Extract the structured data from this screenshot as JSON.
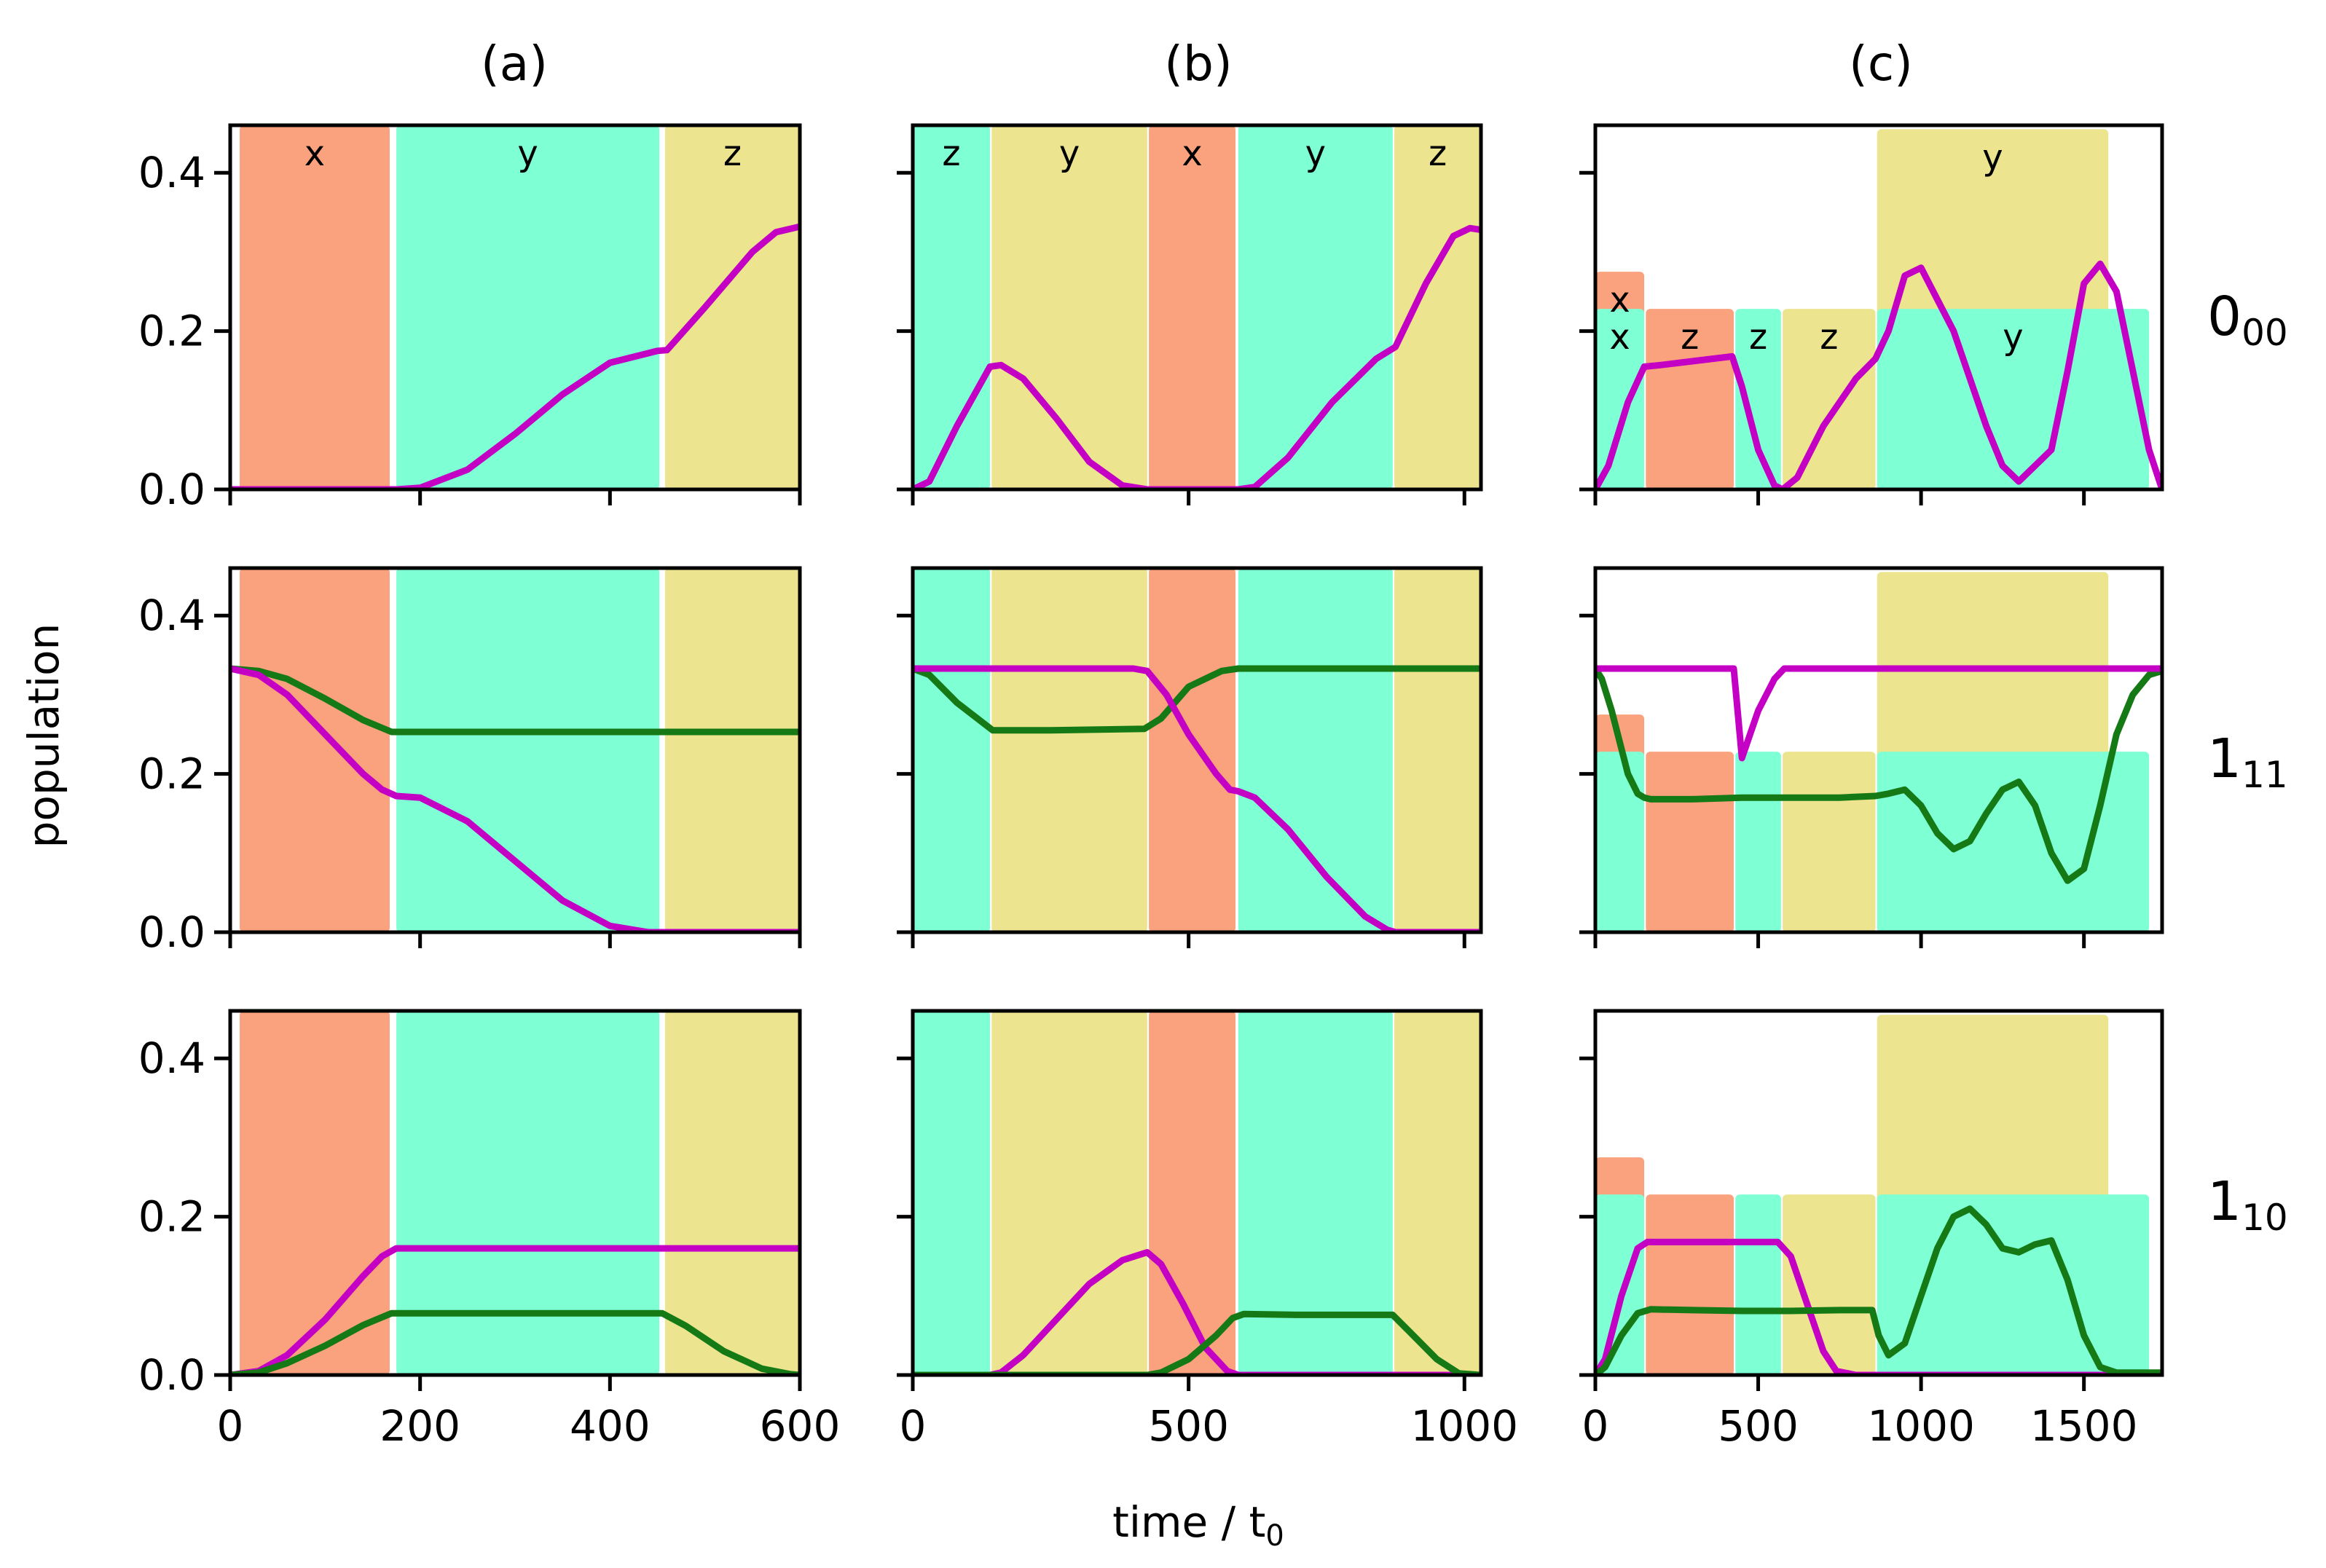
{
  "figure": {
    "xlabel": "time / t",
    "xlabel_sub": "0",
    "ylabel": "population"
  },
  "colors": {
    "x": "#FAA27D",
    "y": "#7FFFD4",
    "z": "#ECE48E",
    "magenta": "#C300C3",
    "green": "#157A15"
  },
  "columns": [
    {
      "title": "(a)",
      "xlim": [
        0,
        600
      ],
      "xticks": [
        0,
        200,
        400,
        600
      ],
      "pulses": [
        {
          "type": "x",
          "start": 10,
          "end": 168,
          "height": 0.46,
          "label": "x"
        },
        {
          "type": "y",
          "start": 175,
          "end": 452,
          "height": 0.46,
          "label": "y"
        },
        {
          "type": "z",
          "start": 458,
          "end": 600,
          "height": 0.46,
          "label": "z"
        }
      ]
    },
    {
      "title": "(b)",
      "xlim": [
        0,
        1030
      ],
      "xticks": [
        0,
        500,
        1000
      ],
      "pulses": [
        {
          "type": "y",
          "start": 0,
          "end": 140,
          "height": 0.46,
          "label": "z"
        },
        {
          "type": "z",
          "start": 143,
          "end": 425,
          "height": 0.46,
          "label": "y"
        },
        {
          "type": "x",
          "start": 428,
          "end": 585,
          "height": 0.46,
          "label": "x"
        },
        {
          "type": "y",
          "start": 590,
          "end": 870,
          "height": 0.46,
          "label": "y"
        },
        {
          "type": "z",
          "start": 873,
          "end": 1030,
          "height": 0.46,
          "label": "z"
        }
      ]
    },
    {
      "title": "(c)",
      "xlim": [
        0,
        1740
      ],
      "xticks": [
        0,
        500,
        1000,
        1500
      ],
      "pulses": [
        {
          "type": "x",
          "start": 0,
          "end": 150,
          "height": 0.275,
          "label": "x"
        },
        {
          "type": "y",
          "start": 0,
          "end": 150,
          "height": 0.228,
          "label": "x"
        },
        {
          "type": "x",
          "start": 155,
          "end": 425,
          "height": 0.228,
          "label": "z"
        },
        {
          "type": "y",
          "start": 430,
          "end": 570,
          "height": 0.228,
          "label": "z"
        },
        {
          "type": "z",
          "start": 575,
          "end": 860,
          "height": 0.228,
          "label": "z"
        },
        {
          "type": "z",
          "start": 865,
          "end": 1575,
          "height": 0.455,
          "label": "y"
        },
        {
          "type": "y",
          "start": 865,
          "end": 1700,
          "height": 0.228,
          "label": "y"
        }
      ]
    }
  ],
  "rows": [
    {
      "label_main": "0",
      "label_sub": "00"
    },
    {
      "label_main": "1",
      "label_sub": "11"
    },
    {
      "label_main": "1",
      "label_sub": "10"
    }
  ],
  "yaxis": {
    "ylim": [
      0,
      0.46
    ],
    "yticks": [
      "0.0",
      "0.2",
      "0.4"
    ],
    "ytick_values": [
      0,
      0.2,
      0.4
    ]
  },
  "chart_data": [
    {
      "panel": "(a) 0_00",
      "type": "line",
      "xlim": [
        0,
        600
      ],
      "ylim": [
        0,
        0.46
      ],
      "series": [
        {
          "color": "magenta",
          "x": [
            0,
            100,
            175,
            200,
            250,
            300,
            350,
            400,
            450,
            460,
            500,
            550,
            575,
            600
          ],
          "y": [
            0,
            0,
            0,
            0.002,
            0.025,
            0.07,
            0.12,
            0.16,
            0.175,
            0.176,
            0.23,
            0.3,
            0.325,
            0.332
          ]
        }
      ]
    },
    {
      "panel": "(b) 0_00",
      "type": "line",
      "xlim": [
        0,
        1030
      ],
      "ylim": [
        0,
        0.46
      ],
      "series": [
        {
          "color": "magenta",
          "x": [
            0,
            30,
            80,
            140,
            160,
            200,
            260,
            320,
            380,
            425,
            500,
            590,
            620,
            680,
            760,
            840,
            875,
            930,
            980,
            1010,
            1030
          ],
          "y": [
            0,
            0.01,
            0.08,
            0.155,
            0.157,
            0.14,
            0.09,
            0.035,
            0.005,
            0,
            0,
            0,
            0.003,
            0.04,
            0.11,
            0.165,
            0.18,
            0.26,
            0.32,
            0.33,
            0.328
          ]
        }
      ]
    },
    {
      "panel": "(c) 0_00",
      "type": "line",
      "xlim": [
        0,
        1740
      ],
      "ylim": [
        0,
        0.46
      ],
      "series": [
        {
          "color": "magenta",
          "x": [
            0,
            40,
            100,
            150,
            200,
            300,
            420,
            450,
            500,
            550,
            575,
            620,
            700,
            800,
            860,
            900,
            950,
            1000,
            1100,
            1200,
            1250,
            1300,
            1400,
            1450,
            1500,
            1550,
            1600,
            1650,
            1700,
            1740
          ],
          "y": [
            0,
            0.03,
            0.11,
            0.155,
            0.157,
            0.162,
            0.168,
            0.13,
            0.05,
            0.005,
            0,
            0.015,
            0.08,
            0.14,
            0.165,
            0.2,
            0.27,
            0.28,
            0.2,
            0.08,
            0.03,
            0.01,
            0.05,
            0.15,
            0.26,
            0.285,
            0.25,
            0.15,
            0.05,
            0
          ]
        }
      ]
    },
    {
      "panel": "(a) 1_11",
      "type": "line",
      "xlim": [
        0,
        600
      ],
      "ylim": [
        0,
        0.46
      ],
      "series": [
        {
          "color": "green",
          "x": [
            0,
            30,
            60,
            100,
            140,
            170,
            300,
            450,
            600
          ],
          "y": [
            0.333,
            0.33,
            0.32,
            0.295,
            0.268,
            0.253,
            0.253,
            0.253,
            0.253
          ]
        },
        {
          "color": "magenta",
          "x": [
            0,
            30,
            60,
            100,
            140,
            160,
            175,
            200,
            250,
            300,
            350,
            400,
            440,
            460,
            600
          ],
          "y": [
            0.333,
            0.325,
            0.3,
            0.25,
            0.2,
            0.18,
            0.172,
            0.17,
            0.14,
            0.09,
            0.04,
            0.008,
            0,
            0,
            0
          ]
        }
      ]
    },
    {
      "panel": "(b) 1_11",
      "type": "line",
      "xlim": [
        0,
        1030
      ],
      "ylim": [
        0,
        0.46
      ],
      "series": [
        {
          "color": "green",
          "x": [
            0,
            30,
            80,
            145,
            250,
            420,
            450,
            500,
            560,
            590,
            700,
            900,
            1030
          ],
          "y": [
            0.333,
            0.325,
            0.29,
            0.255,
            0.255,
            0.257,
            0.27,
            0.31,
            0.33,
            0.333,
            0.333,
            0.333,
            0.333
          ]
        },
        {
          "color": "magenta",
          "x": [
            0,
            200,
            400,
            425,
            460,
            500,
            550,
            575,
            590,
            620,
            680,
            750,
            820,
            860,
            875,
            1030
          ],
          "y": [
            0.333,
            0.333,
            0.333,
            0.33,
            0.3,
            0.25,
            0.2,
            0.18,
            0.178,
            0.17,
            0.13,
            0.07,
            0.02,
            0.003,
            0,
            0
          ]
        }
      ]
    },
    {
      "panel": "(c) 1_11",
      "type": "line",
      "xlim": [
        0,
        1740
      ],
      "ylim": [
        0,
        0.46
      ],
      "series": [
        {
          "color": "green",
          "x": [
            0,
            20,
            50,
            100,
            130,
            150,
            170,
            300,
            450,
            600,
            750,
            860,
            900,
            950,
            1000,
            1050,
            1100,
            1150,
            1200,
            1250,
            1300,
            1350,
            1400,
            1450,
            1500,
            1550,
            1600,
            1650,
            1700,
            1740
          ],
          "y": [
            0.333,
            0.32,
            0.28,
            0.2,
            0.175,
            0.17,
            0.168,
            0.168,
            0.17,
            0.17,
            0.17,
            0.172,
            0.175,
            0.18,
            0.16,
            0.125,
            0.105,
            0.115,
            0.15,
            0.18,
            0.19,
            0.16,
            0.1,
            0.065,
            0.08,
            0.16,
            0.25,
            0.3,
            0.325,
            0.33
          ]
        },
        {
          "color": "magenta",
          "x": [
            0,
            150,
            300,
            425,
            450,
            500,
            550,
            580,
            700,
            1000,
            1740
          ],
          "y": [
            0.333,
            0.333,
            0.333,
            0.333,
            0.22,
            0.28,
            0.32,
            0.333,
            0.333,
            0.333,
            0.333
          ]
        }
      ]
    },
    {
      "panel": "(a) 1_10",
      "type": "line",
      "xlim": [
        0,
        600
      ],
      "ylim": [
        0,
        0.46
      ],
      "series": [
        {
          "color": "magenta",
          "x": [
            0,
            30,
            60,
            100,
            140,
            160,
            175,
            300,
            450,
            600
          ],
          "y": [
            0,
            0.005,
            0.025,
            0.07,
            0.125,
            0.15,
            0.16,
            0.16,
            0.16,
            0.16
          ]
        },
        {
          "color": "green",
          "x": [
            0,
            30,
            60,
            100,
            140,
            170,
            300,
            455,
            480,
            520,
            560,
            590,
            600
          ],
          "y": [
            0,
            0.003,
            0.015,
            0.037,
            0.063,
            0.078,
            0.078,
            0.078,
            0.062,
            0.03,
            0.008,
            0.001,
            0
          ]
        }
      ]
    },
    {
      "panel": "(b) 1_10",
      "type": "line",
      "xlim": [
        0,
        1030
      ],
      "ylim": [
        0,
        0.46
      ],
      "series": [
        {
          "color": "magenta",
          "x": [
            0,
            140,
            160,
            200,
            260,
            320,
            380,
            425,
            450,
            490,
            530,
            570,
            590,
            1030
          ],
          "y": [
            0,
            0,
            0.003,
            0.025,
            0.07,
            0.115,
            0.145,
            0.155,
            0.14,
            0.09,
            0.035,
            0.005,
            0,
            0
          ]
        },
        {
          "color": "green",
          "x": [
            0,
            425,
            450,
            500,
            550,
            580,
            600,
            700,
            870,
            900,
            950,
            990,
            1030
          ],
          "y": [
            0,
            0,
            0.003,
            0.02,
            0.05,
            0.072,
            0.077,
            0.076,
            0.076,
            0.055,
            0.02,
            0.002,
            0
          ]
        }
      ]
    },
    {
      "panel": "(c) 1_10",
      "type": "line",
      "xlim": [
        0,
        1740
      ],
      "ylim": [
        0,
        0.46
      ],
      "series": [
        {
          "color": "magenta",
          "x": [
            0,
            30,
            80,
            130,
            160,
            300,
            420,
            560,
            600,
            650,
            700,
            740,
            800,
            1000,
            1740
          ],
          "y": [
            0,
            0.02,
            0.1,
            0.16,
            0.168,
            0.168,
            0.168,
            0.168,
            0.15,
            0.09,
            0.03,
            0.005,
            0,
            0,
            0
          ]
        },
        {
          "color": "green",
          "x": [
            0,
            30,
            80,
            130,
            170,
            300,
            450,
            600,
            750,
            850,
            870,
            900,
            950,
            1000,
            1050,
            1100,
            1150,
            1200,
            1250,
            1300,
            1350,
            1400,
            1450,
            1500,
            1550,
            1600,
            1650,
            1700,
            1740
          ],
          "y": [
            0,
            0.01,
            0.05,
            0.078,
            0.083,
            0.082,
            0.081,
            0.081,
            0.082,
            0.082,
            0.05,
            0.025,
            0.04,
            0.1,
            0.16,
            0.2,
            0.21,
            0.19,
            0.16,
            0.155,
            0.165,
            0.17,
            0.12,
            0.05,
            0.01,
            0.003,
            0.003,
            0.003,
            0.003
          ]
        }
      ]
    }
  ]
}
